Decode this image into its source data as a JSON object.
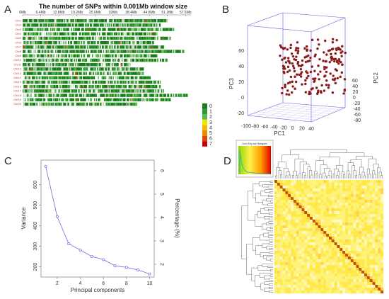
{
  "panels": [
    "A",
    "B",
    "C",
    "D"
  ],
  "chart_data": [
    {
      "type": "heatmap",
      "title": "The number of SNPs within 0.001Mb window size",
      "x_ticks": [
        "0Mb",
        "6.4Mb",
        "12.8Mb",
        "19.2Mb",
        "25.6Mb",
        "32Mb",
        "38.4Mb",
        "44.8Mb",
        "51.2Mb",
        "57.6Mb"
      ],
      "rows": [
        {
          "name": "Chr1",
          "length": 0.86
        },
        {
          "name": "Chr2",
          "length": 0.82
        },
        {
          "name": "Chr3",
          "length": 0.9
        },
        {
          "name": "Chr4",
          "length": 0.8
        },
        {
          "name": "Chr5",
          "length": 0.88
        },
        {
          "name": "Chr6",
          "length": 0.78
        },
        {
          "name": "Chr7",
          "length": 0.84
        },
        {
          "name": "Chr8",
          "length": 0.96
        },
        {
          "name": "Chr9",
          "length": 0.8
        },
        {
          "name": "Chr10",
          "length": 0.86
        },
        {
          "name": "Chr11",
          "length": 0.64
        },
        {
          "name": "Chr12",
          "length": 0.72
        },
        {
          "name": "Chr13",
          "length": 0.72
        },
        {
          "name": "Chr14",
          "length": 0.76
        },
        {
          "name": "Chr15",
          "length": 0.82
        },
        {
          "name": "Chr16",
          "length": 0.82
        },
        {
          "name": "Chr17",
          "length": 0.84
        },
        {
          "name": "Chr18",
          "length": 0.98
        },
        {
          "name": "Chr19",
          "length": 0.88
        },
        {
          "name": "Chr20",
          "length": 0.68
        }
      ],
      "legend": {
        "labels": [
          "0",
          "1",
          "2",
          "3",
          "4",
          "5",
          "6",
          "7"
        ],
        "colors": [
          "#1b7a1b",
          "#2f9a2f",
          "#56b856",
          "#f2e600",
          "#f5b800",
          "#f08a00",
          "#e5450d",
          "#c80000"
        ]
      }
    },
    {
      "type": "scatter",
      "title": "",
      "axes": {
        "x": {
          "label": "PC1",
          "ticks": [
            "-100",
            "-80",
            "-60",
            "-40",
            "-20",
            "0",
            "20",
            "40"
          ]
        },
        "y": {
          "label": "PC2",
          "ticks": [
            "-80",
            "-60",
            "-40",
            "-20",
            "0",
            "20",
            "40",
            "60"
          ]
        },
        "z": {
          "label": "PC3",
          "ticks": [
            "-20",
            "0",
            "20",
            "40",
            "60"
          ]
        }
      },
      "point_color": "#8b1a1a"
    },
    {
      "type": "line",
      "title": "",
      "xlabel": "Principal components",
      "ylabel": "Variance",
      "y2label": "Percentage (%)",
      "x": [
        1,
        2,
        3,
        4,
        5,
        6,
        7,
        8,
        9,
        10
      ],
      "y": [
        690,
        445,
        312,
        282,
        250,
        235,
        205,
        197,
        185,
        165
      ],
      "xlim": [
        0.6,
        10.4
      ],
      "ylim": [
        150,
        720
      ],
      "x_ticks": [
        "2",
        "4",
        "6",
        "8",
        "10"
      ],
      "y_ticks": [
        "200",
        "300",
        "400",
        "500",
        "600"
      ],
      "y2_ticks": [
        "2",
        "3",
        "4",
        "5",
        "6"
      ],
      "line_color": "#6a6ae0"
    },
    {
      "type": "heatmap",
      "title": "",
      "key_title": "Color Key and Histogram",
      "colors": [
        "#fffde0",
        "#fff04a",
        "#ffb000",
        "#ff3300",
        "#c80000"
      ]
    }
  ]
}
